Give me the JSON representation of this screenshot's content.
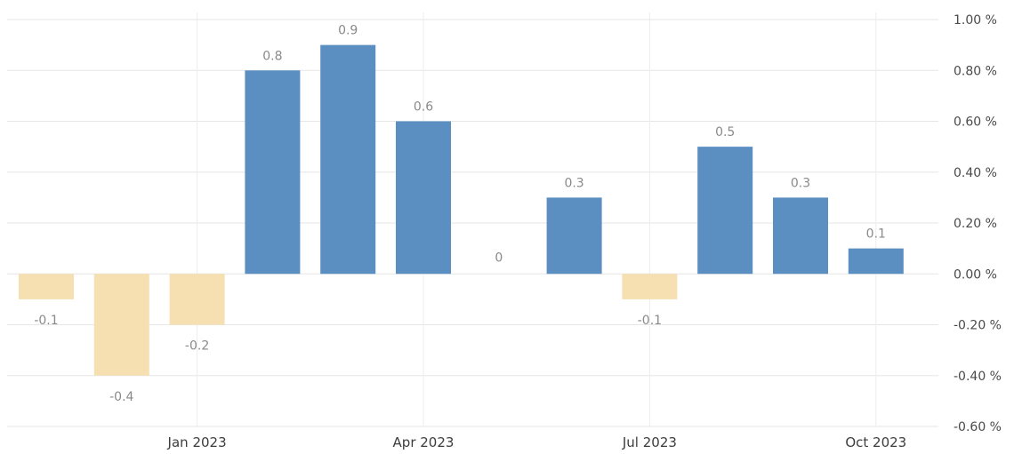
{
  "chart_data": {
    "type": "bar",
    "categories": [
      "Nov 2022",
      "Dec 2022",
      "Jan 2023",
      "Feb 2023",
      "Mar 2023",
      "Apr 2023",
      "May 2023",
      "Jun 2023",
      "Jul 2023",
      "Aug 2023",
      "Sep 2023",
      "Oct 2023"
    ],
    "values": [
      -0.1,
      -0.4,
      -0.2,
      0.8,
      0.9,
      0.6,
      0,
      0.3,
      -0.1,
      0.5,
      0.3,
      0.1
    ],
    "data_labels": [
      "-0.1",
      "-0.4",
      "-0.2",
      "0.8",
      "0.9",
      "0.6",
      "0",
      "0.3",
      "-0.1",
      "0.5",
      "0.3",
      "0.1"
    ],
    "x_tick_labels": [
      {
        "category": "Jan 2023",
        "label": "Jan 2023"
      },
      {
        "category": "Apr 2023",
        "label": "Apr 2023"
      },
      {
        "category": "Jul 2023",
        "label": "Jul 2023"
      },
      {
        "category": "Oct 2023",
        "label": "Oct 2023"
      }
    ],
    "y_ticks": [
      {
        "value": 1.0,
        "label": "1.00 %"
      },
      {
        "value": 0.8,
        "label": "0.80 %"
      },
      {
        "value": 0.6,
        "label": "0.60 %"
      },
      {
        "value": 0.4,
        "label": "0.40 %"
      },
      {
        "value": 0.2,
        "label": "0.20 %"
      },
      {
        "value": 0.0,
        "label": "0.00 %"
      },
      {
        "value": -0.2,
        "label": "-0.20 %"
      },
      {
        "value": -0.4,
        "label": "-0.40 %"
      },
      {
        "value": -0.6,
        "label": "-0.60 %"
      }
    ],
    "ylim": [
      -0.6,
      1.0
    ],
    "y_axis_position": "right",
    "grid": true,
    "legend": "none",
    "title": "",
    "xlabel": "",
    "ylabel": "",
    "colors": {
      "positive": "#5b8fc2",
      "negative": "#f6dfb0",
      "grid": "#e6e6e6"
    }
  }
}
